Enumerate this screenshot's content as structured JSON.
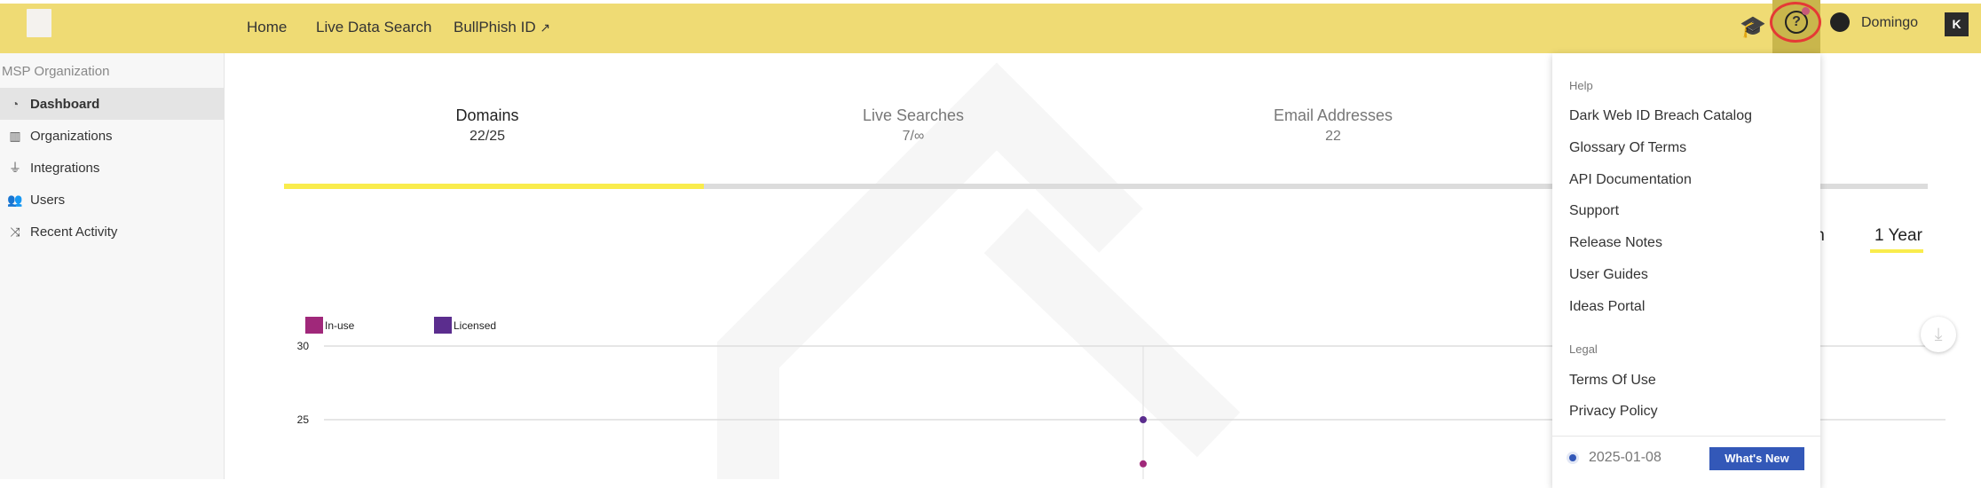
{
  "header": {
    "nav": [
      {
        "label": "Home"
      },
      {
        "label": "Live Data Search"
      },
      {
        "label": "BullPhish ID",
        "icon": "external-link-icon"
      }
    ],
    "user": "Domingo",
    "colors": {
      "header_bg": "#efdb74",
      "highlight": "#e53935"
    }
  },
  "sidebar": {
    "org": "MSP Organization",
    "items": [
      {
        "label": "Dashboard",
        "icon": "dashboard-icon"
      },
      {
        "label": "Organizations",
        "icon": "building-icon"
      },
      {
        "label": "Integrations",
        "icon": "plug-icon"
      },
      {
        "label": "Users",
        "icon": "users-icon"
      },
      {
        "label": "Recent Activity",
        "icon": "shuffle-icon"
      }
    ]
  },
  "tabs": [
    {
      "label": "Domains",
      "value": "22/25"
    },
    {
      "label": "Live Searches",
      "value": "7/∞"
    },
    {
      "label": "Email Addresses",
      "value": "22"
    }
  ],
  "periods": {
    "partial": "th",
    "active": "1 Year"
  },
  "chart_data": {
    "type": "scatter",
    "ylim": [
      22,
      30
    ],
    "yticks": [
      "30",
      "25"
    ],
    "series": [
      {
        "name": "In-use",
        "color": "#a0287a",
        "values": [
          22
        ]
      },
      {
        "name": "Licensed",
        "color": "#5b2d8e",
        "values": [
          25
        ]
      }
    ]
  },
  "menu": {
    "help_heading": "Help",
    "help_items": [
      "Dark Web ID Breach Catalog",
      "Glossary Of Terms",
      "API Documentation",
      "Support",
      "Release Notes",
      "User Guides",
      "Ideas Portal"
    ],
    "legal_heading": "Legal",
    "legal_items": [
      "Terms Of Use",
      "Privacy Policy"
    ],
    "version_date": "2025-01-08",
    "whats_new": "What's New"
  }
}
